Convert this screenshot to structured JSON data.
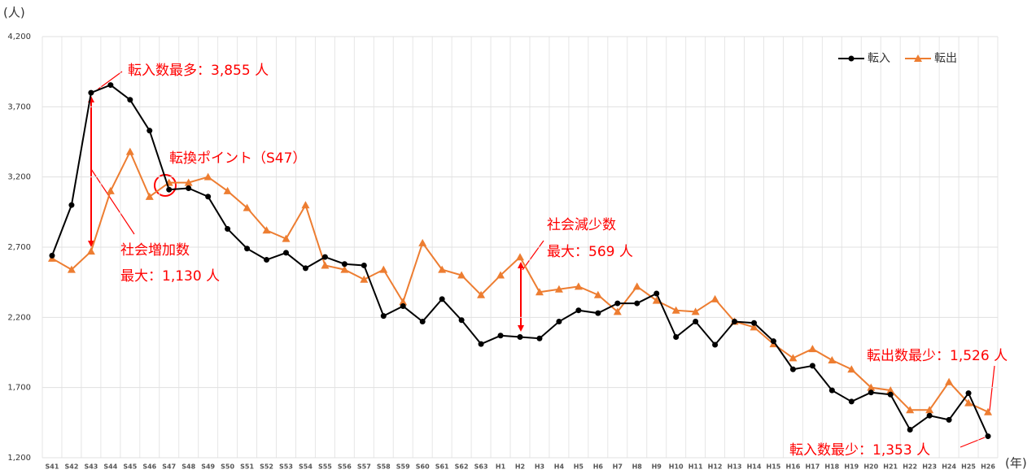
{
  "chart_data": {
    "type": "line",
    "y_unit_label": "(人)",
    "x_unit_label": "(年)",
    "categories": [
      "S41",
      "S42",
      "S43",
      "S44",
      "S45",
      "S46",
      "S47",
      "S48",
      "S49",
      "S50",
      "S51",
      "S52",
      "S53",
      "S54",
      "S55",
      "S56",
      "S57",
      "S58",
      "S59",
      "S60",
      "S61",
      "S62",
      "S63",
      "H1",
      "H2",
      "H3",
      "H4",
      "H5",
      "H6",
      "H7",
      "H8",
      "H9",
      "H10",
      "H11",
      "H12",
      "H13",
      "H14",
      "H15",
      "H16",
      "H17",
      "H18",
      "H19",
      "H20",
      "H21",
      "H22",
      "H23",
      "H24",
      "H25",
      "H26"
    ],
    "series": [
      {
        "name": "転入",
        "color": "#000000",
        "marker": "circle",
        "values": [
          2640,
          3000,
          3800,
          3855,
          3750,
          3530,
          3110,
          3120,
          3060,
          2830,
          2690,
          2610,
          2660,
          2550,
          2630,
          2580,
          2570,
          2210,
          2280,
          2170,
          2330,
          2180,
          2010,
          2070,
          2060,
          2050,
          2170,
          2250,
          2230,
          2300,
          2300,
          2370,
          2060,
          2170,
          2005,
          2170,
          2160,
          2030,
          1830,
          1855,
          1680,
          1600,
          1665,
          1650,
          1400,
          1500,
          1470,
          1660,
          1353
        ]
      },
      {
        "name": "転出",
        "color": "#ed7d31",
        "marker": "triangle",
        "values": [
          2620,
          2540,
          2670,
          3100,
          3380,
          3060,
          3160,
          3160,
          3200,
          3100,
          2980,
          2820,
          2760,
          3000,
          2570,
          2540,
          2470,
          2540,
          2310,
          2730,
          2540,
          2500,
          2360,
          2500,
          2629,
          2380,
          2400,
          2420,
          2360,
          2240,
          2420,
          2320,
          2250,
          2240,
          2330,
          2170,
          2130,
          2010,
          1910,
          1975,
          1895,
          1830,
          1700,
          1680,
          1540,
          1540,
          1740,
          1590,
          1526
        ]
      }
    ],
    "ylim": [
      1200,
      4200
    ],
    "yticks": [
      {
        "value": 1200,
        "label": "1,200"
      },
      {
        "value": 1700,
        "label": "1,700"
      },
      {
        "value": 2200,
        "label": "2,200"
      },
      {
        "value": 2700,
        "label": "2,700"
      },
      {
        "value": 3200,
        "label": "3,200"
      },
      {
        "value": 3700,
        "label": "3,700"
      },
      {
        "value": 4200,
        "label": "4,200"
      }
    ],
    "grid": true,
    "legend": "upper right",
    "annotations": [
      "転入数最多：3,855 人",
      "転換ポイント（S47）",
      "社会増加数",
      "最大：1,130 人",
      "社会減少数",
      "最大：569 人",
      "転出数最少：1,526 人",
      "転入数最少：1,353 人"
    ]
  }
}
